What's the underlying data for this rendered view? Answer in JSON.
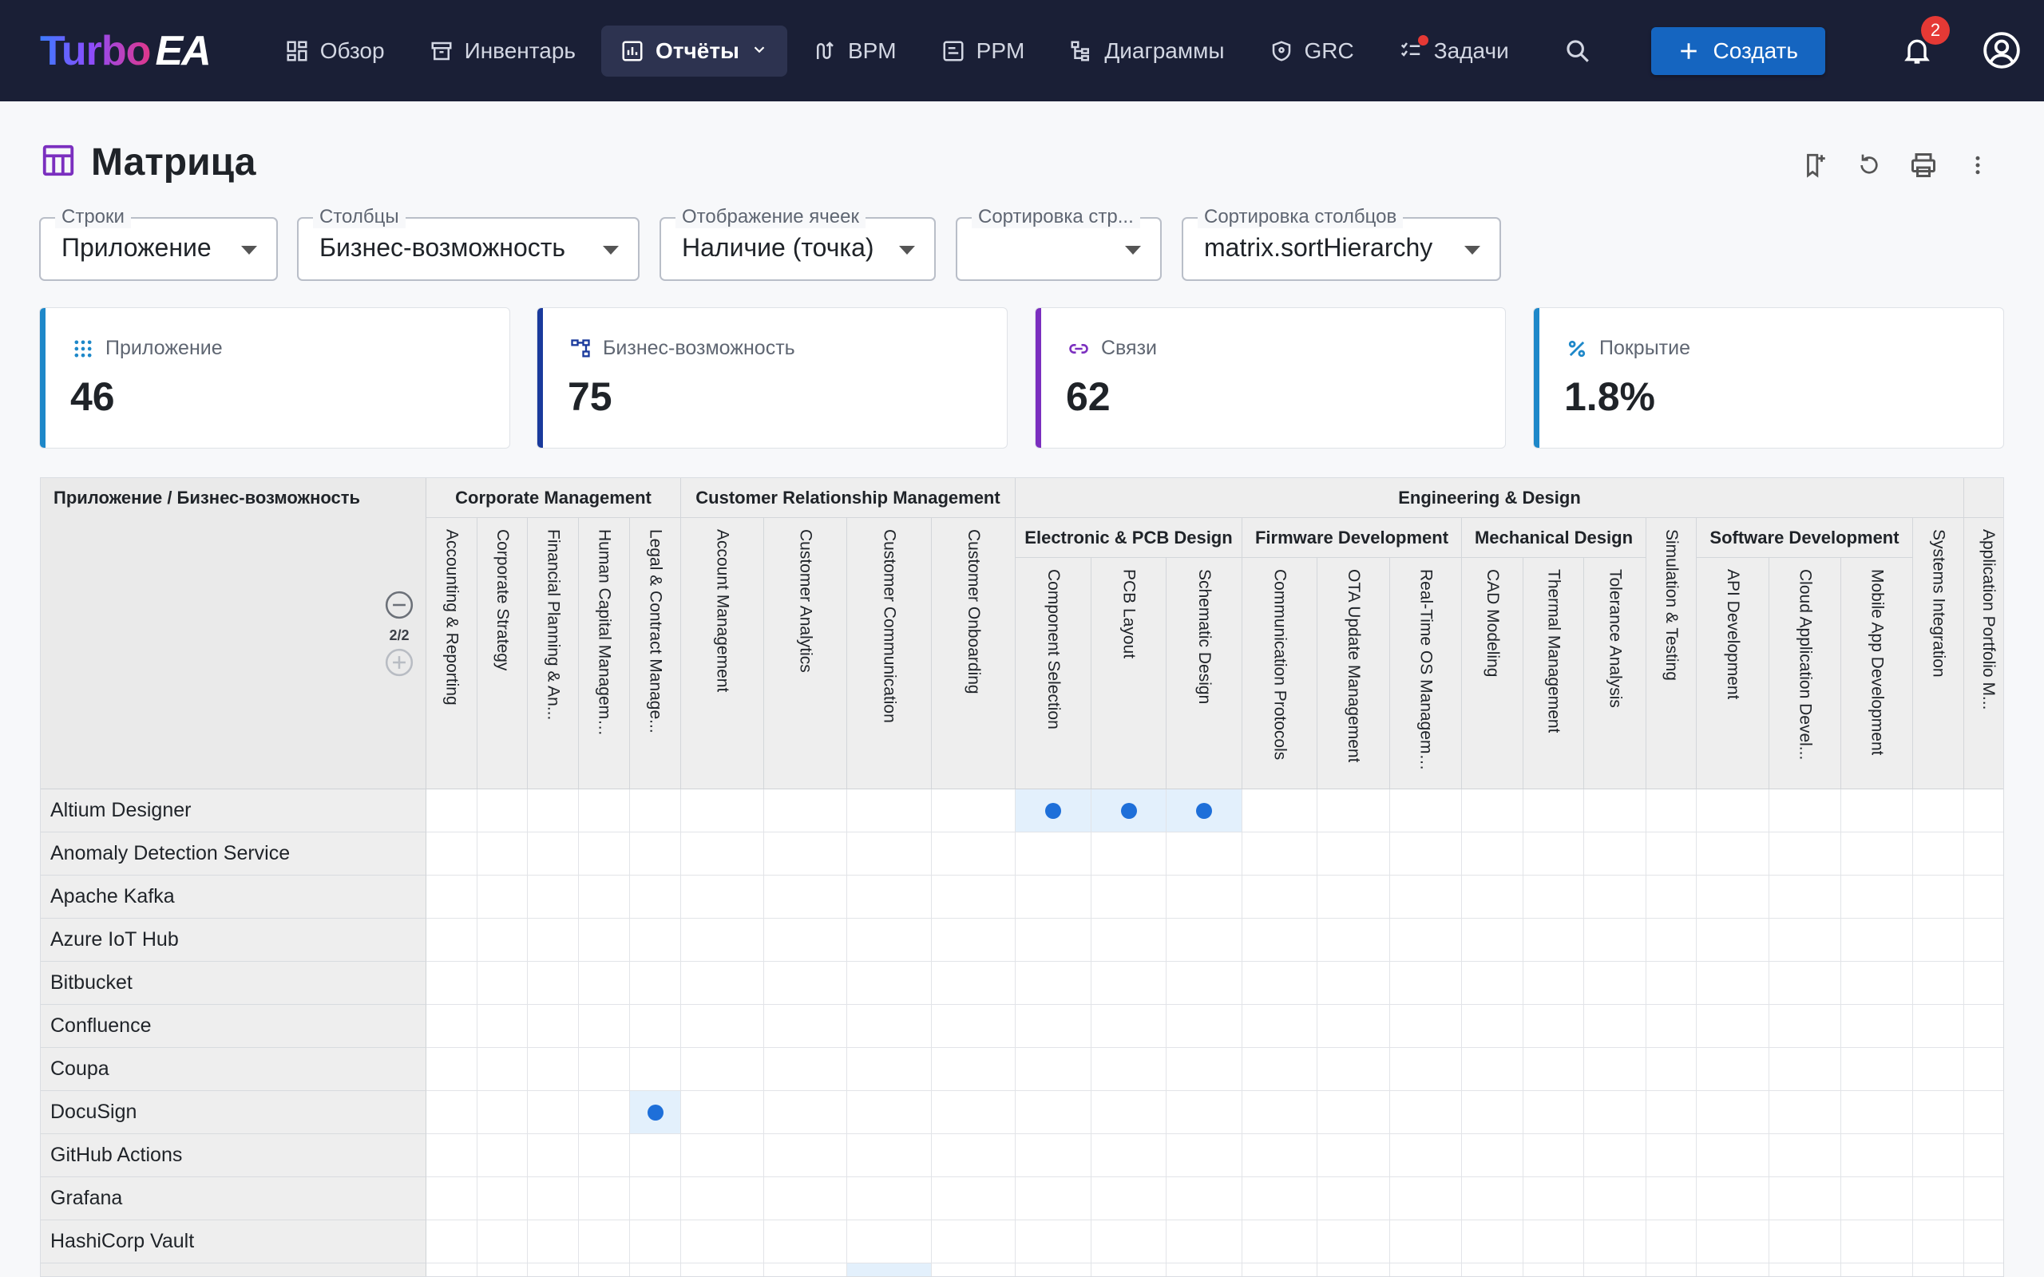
{
  "app": {
    "logo_text": "Turbo",
    "logo_accent": "EA"
  },
  "nav": {
    "items": [
      {
        "label": "Обзор",
        "icon": "dashboard-icon"
      },
      {
        "label": "Инвентарь",
        "icon": "archive-icon"
      },
      {
        "label": "Отчёты",
        "icon": "chart-icon",
        "active": true
      },
      {
        "label": "BPM",
        "icon": "flow-icon"
      },
      {
        "label": "PPM",
        "icon": "project-icon"
      },
      {
        "label": "Диаграммы",
        "icon": "diagram-icon"
      },
      {
        "label": "GRC",
        "icon": "shield-icon"
      },
      {
        "label": "Задачи",
        "icon": "tasks-icon"
      }
    ],
    "create_label": "Создать",
    "notification_count": "2"
  },
  "page": {
    "title": "Матрица"
  },
  "filters": {
    "rows": {
      "label": "Строки",
      "value": "Приложение"
    },
    "cols": {
      "label": "Столбцы",
      "value": "Бизнес-возможность"
    },
    "cell": {
      "label": "Отображение ячеек",
      "value": "Наличие (точка)"
    },
    "rowsort": {
      "label": "Сортировка стр...",
      "value": ""
    },
    "colsort": {
      "label": "Сортировка столбцов",
      "value": "matrix.sortHierarchy"
    }
  },
  "stats": [
    {
      "label": "Приложение",
      "value": "46",
      "color": "#1e88c9",
      "icon": "grid-icon"
    },
    {
      "label": "Бизнес-возможность",
      "value": "75",
      "color": "#1a3a9c",
      "icon": "hierarchy-icon"
    },
    {
      "label": "Связи",
      "value": "62",
      "color": "#7b2fbf",
      "icon": "link-icon"
    },
    {
      "label": "Покрытие",
      "value": "1.8%",
      "color": "#1e88c9",
      "icon": "percent-icon"
    }
  ],
  "matrix": {
    "corner_title": "Приложение / Бизнес-возможность",
    "level_indicator": "2/2",
    "groups": [
      {
        "label": "Corporate Management"
      },
      {
        "label": "Customer Relationship Management"
      },
      {
        "label": "Engineering & Design"
      }
    ],
    "subgroups": [
      {
        "label": "Electronic & PCB Design"
      },
      {
        "label": "Firmware Development"
      },
      {
        "label": "Mechanical Design"
      },
      {
        "label": "Software Development"
      }
    ],
    "columns": [
      "Accounting & Reporting",
      "Corporate Strategy",
      "Financial Planning & An...",
      "Human Capital Management",
      "Legal & Contract Manage...",
      "Account Management",
      "Customer Analytics",
      "Customer Communication",
      "Customer Onboarding",
      "Component Selection",
      "PCB Layout",
      "Schematic Design",
      "Communication Protocols",
      "OTA Update Management",
      "Real-Time OS Management",
      "CAD Modeling",
      "Thermal Management",
      "Tolerance Analysis",
      "Simulation & Testing",
      "API Development",
      "Cloud Application Devel...",
      "Mobile App Development",
      "Systems Integration",
      "Application Portfolio M..."
    ],
    "rows": [
      {
        "label": "Altium Designer",
        "dots": [
          9,
          10,
          11
        ]
      },
      {
        "label": "Anomaly Detection Service",
        "dots": []
      },
      {
        "label": "Apache Kafka",
        "dots": []
      },
      {
        "label": "Azure IoT Hub",
        "dots": []
      },
      {
        "label": "Bitbucket",
        "dots": []
      },
      {
        "label": "Confluence",
        "dots": []
      },
      {
        "label": "Coupa",
        "dots": []
      },
      {
        "label": "DocuSign",
        "dots": [
          4
        ]
      },
      {
        "label": "GitHub Actions",
        "dots": []
      },
      {
        "label": "Grafana",
        "dots": []
      },
      {
        "label": "HashiCorp Vault",
        "dots": []
      },
      {
        "label": "",
        "dots": [],
        "partial_highlight": 7
      }
    ]
  }
}
